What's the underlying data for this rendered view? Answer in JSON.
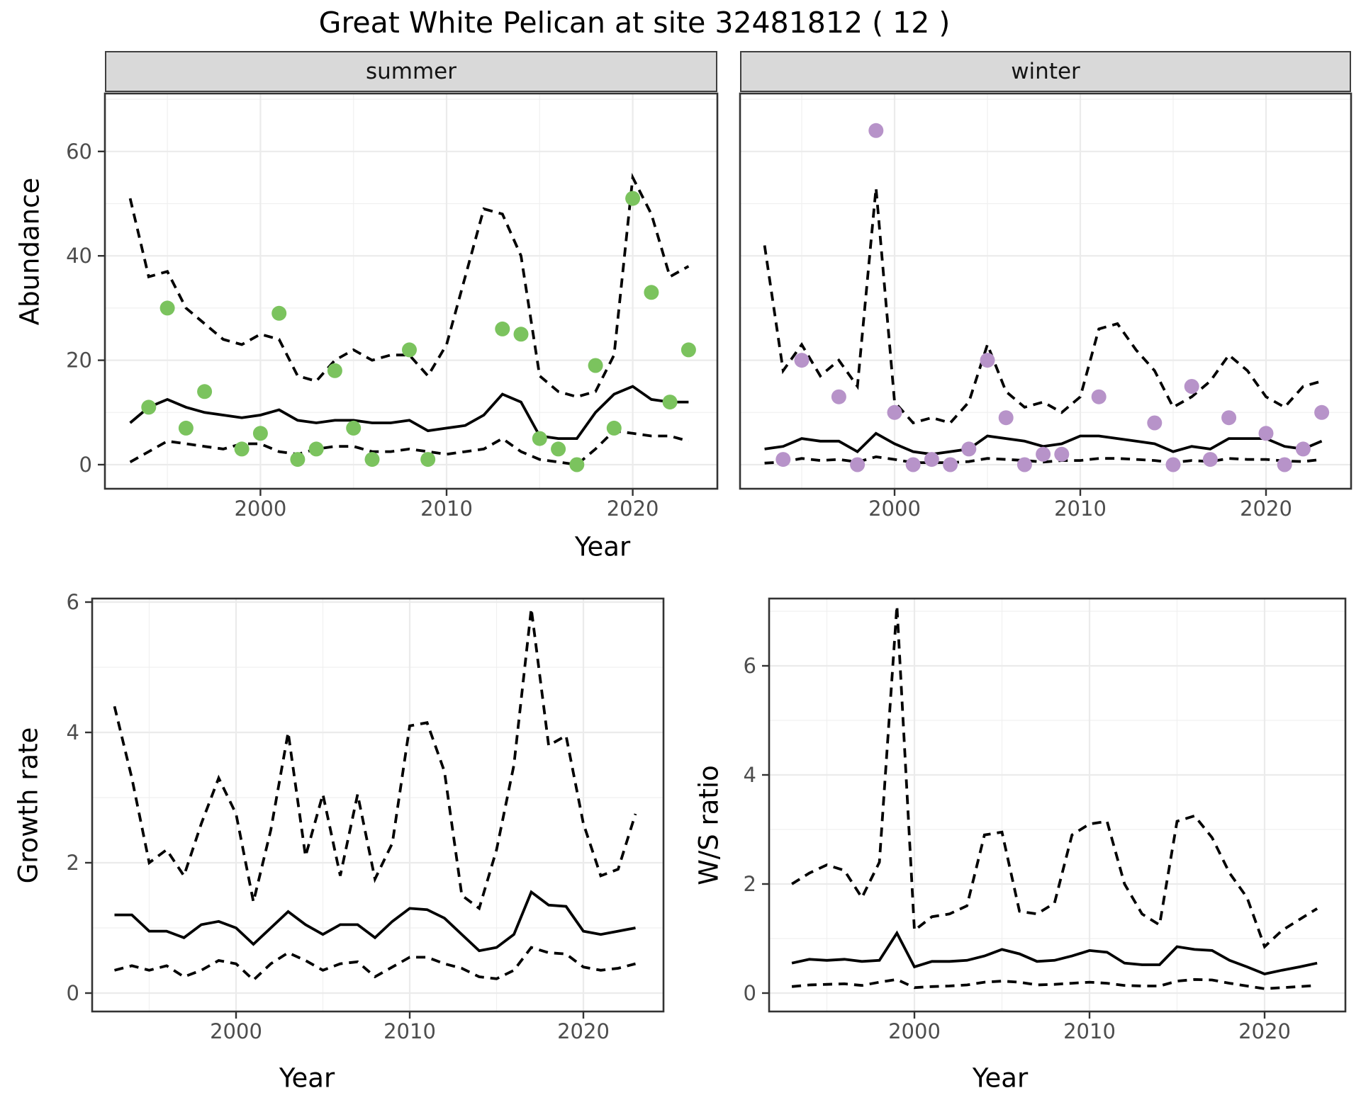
{
  "title": "Great White Pelican at site 32481812 ( 12 )",
  "facets": {
    "summer": "summer",
    "winter": "winter"
  },
  "axis_titles": {
    "x": "Year",
    "y_abundance": "Abundance",
    "y_growth": "Growth rate",
    "y_ratio": "W/S ratio"
  },
  "colors": {
    "summer_point": "#7bc35e",
    "winter_point": "#b793c9",
    "line": "#000000",
    "panel_border": "#333333",
    "grid_major": "#ebebeb",
    "grid_minor": "#f0f0f0",
    "strip_bg": "#d9d9d9",
    "tick_text": "#4d4d4d"
  },
  "chart_data": [
    {
      "id": "abundance_summer",
      "type": "line",
      "facet": "summer",
      "ylabel": "Abundance",
      "xlabel": "Year",
      "x_ticks": [
        2000,
        2010,
        2020
      ],
      "y_ticks": [
        0,
        20,
        40,
        60
      ],
      "xlim": [
        1991.7,
        2024.6
      ],
      "ylim": [
        -4.6,
        71
      ],
      "grid": true,
      "years": [
        1993,
        1994,
        1995,
        1996,
        1997,
        1998,
        1999,
        2000,
        2001,
        2002,
        2003,
        2004,
        2005,
        2006,
        2007,
        2008,
        2009,
        2010,
        2011,
        2012,
        2013,
        2014,
        2015,
        2016,
        2017,
        2018,
        2019,
        2020,
        2021,
        2022,
        2023
      ],
      "series": [
        {
          "name": "median",
          "style": "solid",
          "values": [
            8,
            11,
            12.5,
            11,
            10,
            9.5,
            9,
            9.5,
            10.5,
            8.5,
            8,
            8.5,
            8.5,
            8,
            8,
            8.5,
            6.5,
            7,
            7.5,
            9.5,
            13.5,
            12,
            5.5,
            5,
            5,
            10,
            13.5,
            15,
            12.5,
            12,
            12
          ]
        },
        {
          "name": "upper_ci",
          "style": "dashed",
          "values": [
            51,
            36,
            37,
            30,
            27,
            24,
            23,
            25,
            24,
            17,
            16,
            20,
            22,
            20,
            21,
            21,
            17,
            23,
            36,
            49,
            48,
            40,
            17,
            14,
            13,
            14,
            21,
            55,
            48,
            36,
            38
          ]
        },
        {
          "name": "lower_ci",
          "style": "dashed",
          "values": [
            0.5,
            2.5,
            4.5,
            4,
            3.5,
            3,
            4,
            4,
            2.5,
            2,
            3,
            3.5,
            3.5,
            2.5,
            2.5,
            3,
            2.5,
            2,
            2.5,
            3,
            5,
            2.5,
            1,
            0.5,
            0,
            3,
            6.5,
            6,
            5.5,
            5.5,
            4.5
          ]
        }
      ],
      "points": [
        [
          1994,
          11
        ],
        [
          1995,
          30
        ],
        [
          1996,
          7
        ],
        [
          1997,
          14
        ],
        [
          1999,
          3
        ],
        [
          2000,
          6
        ],
        [
          2001,
          29
        ],
        [
          2002,
          1
        ],
        [
          2003,
          3
        ],
        [
          2004,
          18
        ],
        [
          2005,
          7
        ],
        [
          2006,
          1
        ],
        [
          2008,
          22
        ],
        [
          2009,
          1
        ],
        [
          2013,
          26
        ],
        [
          2014,
          25
        ],
        [
          2015,
          5
        ],
        [
          2016,
          3
        ],
        [
          2017,
          0
        ],
        [
          2018,
          19
        ],
        [
          2019,
          7
        ],
        [
          2020,
          51
        ],
        [
          2021,
          33
        ],
        [
          2022,
          12
        ],
        [
          2023,
          22
        ]
      ]
    },
    {
      "id": "abundance_winter",
      "type": "line",
      "facet": "winter",
      "ylabel": "Abundance",
      "xlabel": "Year",
      "x_ticks": [
        2000,
        2010,
        2020
      ],
      "y_ticks": [
        0,
        20,
        40,
        60
      ],
      "xlim": [
        1991.7,
        2024.6
      ],
      "ylim": [
        -4.6,
        71
      ],
      "grid": true,
      "years": [
        1993,
        1994,
        1995,
        1996,
        1997,
        1998,
        1999,
        2000,
        2001,
        2002,
        2003,
        2004,
        2005,
        2006,
        2007,
        2008,
        2009,
        2010,
        2011,
        2012,
        2013,
        2014,
        2015,
        2016,
        2017,
        2018,
        2019,
        2020,
        2021,
        2022,
        2023
      ],
      "series": [
        {
          "name": "median",
          "style": "solid",
          "values": [
            3,
            3.5,
            5,
            4.5,
            4.5,
            2.5,
            6,
            4,
            2.5,
            2,
            2.5,
            3,
            5.5,
            5,
            4.5,
            3.5,
            4,
            5.5,
            5.5,
            5,
            4.5,
            4,
            2.5,
            3.5,
            3,
            5,
            5,
            5,
            3.5,
            3,
            4.5
          ]
        },
        {
          "name": "upper_ci",
          "style": "dashed",
          "values": [
            42,
            18,
            23,
            17,
            20,
            15,
            53,
            12,
            8,
            9,
            8,
            12,
            23,
            14,
            11,
            12,
            10,
            13,
            26,
            27,
            22,
            18,
            11,
            13,
            16,
            21,
            18,
            13,
            11,
            15,
            16
          ]
        },
        {
          "name": "lower_ci",
          "style": "dashed",
          "values": [
            0.3,
            0.5,
            1.2,
            0.8,
            1,
            0.5,
            1.5,
            1,
            0.4,
            0.4,
            0.4,
            0.6,
            1.2,
            1,
            0.8,
            0.5,
            0.8,
            0.8,
            1.2,
            1.2,
            1,
            0.8,
            0.4,
            0.8,
            0.6,
            1.2,
            1,
            1,
            0.7,
            0.6,
            1
          ]
        }
      ],
      "points": [
        [
          1994,
          1
        ],
        [
          1995,
          20
        ],
        [
          1997,
          13
        ],
        [
          1998,
          0
        ],
        [
          1999,
          64
        ],
        [
          2000,
          10
        ],
        [
          2001,
          0
        ],
        [
          2002,
          1
        ],
        [
          2003,
          0
        ],
        [
          2004,
          3
        ],
        [
          2005,
          20
        ],
        [
          2006,
          9
        ],
        [
          2007,
          0
        ],
        [
          2008,
          2
        ],
        [
          2009,
          2
        ],
        [
          2011,
          13
        ],
        [
          2014,
          8
        ],
        [
          2015,
          0
        ],
        [
          2016,
          15
        ],
        [
          2017,
          1
        ],
        [
          2018,
          9
        ],
        [
          2020,
          6
        ],
        [
          2021,
          0
        ],
        [
          2022,
          3
        ],
        [
          2023,
          10
        ]
      ]
    },
    {
      "id": "growth_rate",
      "type": "line",
      "ylabel": "Growth rate",
      "xlabel": "Year",
      "x_ticks": [
        2000,
        2010,
        2020
      ],
      "y_ticks": [
        0,
        2,
        4,
        6
      ],
      "xlim": [
        1991.7,
        2024.6
      ],
      "ylim": [
        -0.3,
        6.3
      ],
      "grid": true,
      "years": [
        1993,
        1994,
        1995,
        1996,
        1997,
        1998,
        1999,
        2000,
        2001,
        2002,
        2003,
        2004,
        2005,
        2006,
        2007,
        2008,
        2009,
        2010,
        2011,
        2012,
        2013,
        2014,
        2015,
        2016,
        2017,
        2018,
        2019,
        2020,
        2021,
        2022,
        2023
      ],
      "series": [
        {
          "name": "median",
          "style": "solid",
          "values": [
            1.2,
            1.2,
            0.95,
            0.95,
            0.85,
            1.05,
            1.1,
            1.0,
            0.75,
            1.0,
            1.25,
            1.05,
            0.9,
            1.05,
            1.05,
            0.85,
            1.1,
            1.3,
            1.28,
            1.15,
            0.9,
            0.65,
            0.7,
            0.9,
            1.55,
            1.35,
            1.33,
            0.95,
            0.9,
            0.95,
            1.0
          ]
        },
        {
          "name": "upper_ci",
          "style": "dashed",
          "values": [
            4.4,
            3.3,
            2.0,
            2.2,
            1.8,
            2.6,
            3.3,
            2.75,
            1.4,
            2.5,
            4.0,
            2.1,
            3.05,
            1.8,
            3.05,
            1.75,
            2.3,
            4.1,
            4.15,
            3.4,
            1.5,
            1.3,
            2.2,
            3.5,
            5.9,
            3.8,
            3.95,
            2.6,
            1.8,
            1.9,
            2.75
          ]
        },
        {
          "name": "lower_ci",
          "style": "dashed",
          "values": [
            0.35,
            0.42,
            0.35,
            0.42,
            0.25,
            0.35,
            0.5,
            0.45,
            0.2,
            0.45,
            0.62,
            0.5,
            0.35,
            0.45,
            0.48,
            0.25,
            0.4,
            0.55,
            0.55,
            0.45,
            0.38,
            0.25,
            0.22,
            0.35,
            0.7,
            0.62,
            0.6,
            0.4,
            0.35,
            0.38,
            0.45
          ]
        }
      ],
      "points": []
    },
    {
      "id": "ws_ratio",
      "type": "line",
      "ylabel": "W/S ratio",
      "xlabel": "Year",
      "x_ticks": [
        2000,
        2010,
        2020
      ],
      "y_ticks": [
        0,
        2,
        4,
        6
      ],
      "xlim": [
        1991.7,
        2024.6
      ],
      "ylim": [
        -0.4,
        7.4
      ],
      "grid": true,
      "years": [
        1993,
        1994,
        1995,
        1996,
        1997,
        1998,
        1999,
        2000,
        2001,
        2002,
        2003,
        2004,
        2005,
        2006,
        2007,
        2008,
        2009,
        2010,
        2011,
        2012,
        2013,
        2014,
        2015,
        2016,
        2017,
        2018,
        2019,
        2020,
        2021,
        2022,
        2023
      ],
      "series": [
        {
          "name": "median",
          "style": "solid",
          "values": [
            0.55,
            0.62,
            0.6,
            0.62,
            0.58,
            0.6,
            1.1,
            0.48,
            0.58,
            0.58,
            0.6,
            0.68,
            0.8,
            0.72,
            0.58,
            0.6,
            0.68,
            0.78,
            0.75,
            0.55,
            0.52,
            0.52,
            0.85,
            0.8,
            0.78,
            0.6,
            0.48,
            0.35,
            0.42,
            0.48,
            0.55
          ]
        },
        {
          "name": "upper_ci",
          "style": "dashed",
          "values": [
            2.0,
            2.2,
            2.35,
            2.25,
            1.75,
            2.4,
            7.1,
            1.15,
            1.4,
            1.45,
            1.6,
            2.9,
            2.95,
            1.5,
            1.45,
            1.65,
            2.9,
            3.1,
            3.15,
            2.0,
            1.45,
            1.25,
            3.15,
            3.25,
            2.85,
            2.2,
            1.75,
            0.85,
            1.15,
            1.35,
            1.55
          ]
        },
        {
          "name": "lower_ci",
          "style": "dashed",
          "values": [
            0.12,
            0.15,
            0.16,
            0.17,
            0.14,
            0.2,
            0.25,
            0.1,
            0.12,
            0.13,
            0.15,
            0.2,
            0.22,
            0.2,
            0.15,
            0.16,
            0.18,
            0.2,
            0.18,
            0.14,
            0.13,
            0.13,
            0.22,
            0.25,
            0.24,
            0.18,
            0.13,
            0.08,
            0.1,
            0.12,
            0.14
          ]
        }
      ],
      "points": []
    }
  ]
}
